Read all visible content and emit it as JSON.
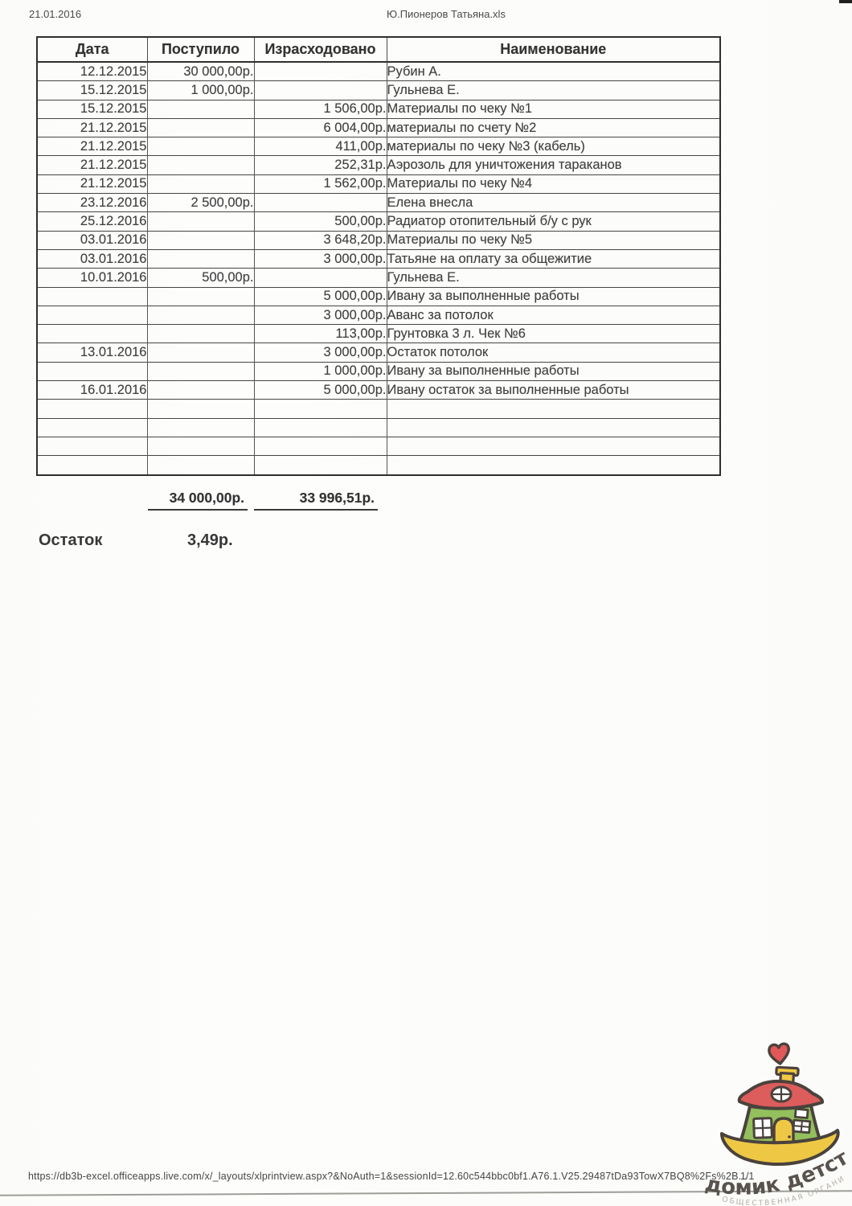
{
  "page_header": {
    "date": "21.01.2016",
    "filename": "Ю.Пионеров Татьяна.xls"
  },
  "table": {
    "columns": [
      "Дата",
      "Поступило",
      "Израсходовано",
      "Наименование"
    ],
    "rows": [
      [
        "12.12.2015",
        "30 000,00р.",
        "",
        "Рубин А."
      ],
      [
        "15.12.2015",
        "1 000,00р.",
        "",
        "Гульнева Е."
      ],
      [
        "15.12.2015",
        "",
        "1 506,00р.",
        "Материалы по чеку №1"
      ],
      [
        "21.12.2015",
        "",
        "6 004,00р.",
        "материалы по счету №2"
      ],
      [
        "21.12.2015",
        "",
        "411,00р.",
        "материалы по чеку №3 (кабель)"
      ],
      [
        "21.12.2015",
        "",
        "252,31р.",
        "Аэрозоль для уничтожения тараканов"
      ],
      [
        "21.12.2015",
        "",
        "1 562,00р.",
        "Материалы по чеку №4"
      ],
      [
        "23.12.2016",
        "2 500,00р.",
        "",
        "Елена внесла"
      ],
      [
        "25.12.2016",
        "",
        "500,00р.",
        "Радиатор отопительный б/у с рук"
      ],
      [
        "03.01.2016",
        "",
        "3 648,20р.",
        "Материалы по чеку №5"
      ],
      [
        "03.01.2016",
        "",
        "3 000,00р.",
        "Татьяне на оплату за общежитие"
      ],
      [
        "10.01.2016",
        "500,00р.",
        "",
        "Гульнева Е."
      ],
      [
        "",
        "",
        "5 000,00р.",
        "Ивану за выполненные работы"
      ],
      [
        "",
        "",
        "3 000,00р.",
        "Аванс за потолок"
      ],
      [
        "",
        "",
        "113,00р.",
        "Грунтовка 3 л. Чек №6"
      ],
      [
        "13.01.2016",
        "",
        "3 000,00р.",
        "Остаток потолок"
      ],
      [
        "",
        "",
        "1 000,00р.",
        "Ивану за выполненные работы"
      ],
      [
        "16.01.2016",
        "",
        "5 000,00р.",
        "Ивану остаток за выполненные работы"
      ],
      [
        "",
        "",
        "",
        ""
      ],
      [
        "",
        "",
        "",
        ""
      ],
      [
        "",
        "",
        "",
        ""
      ],
      [
        "",
        "",
        "",
        ""
      ]
    ],
    "totals": {
      "received": "34 000,00р.",
      "spent": "33 996,51р."
    }
  },
  "summary": {
    "label": "Остаток",
    "value": "3,49р."
  },
  "footer": {
    "url": "https://db3b-excel.officeapps.live.com/x/_layouts/xlprintview.aspx?&NoAuth=1&sessionId=12.60c544bbc0bf1.A76.1.V25.29487tDa93TowX7BQ8%2Fs%2B...",
    "page": "1/1"
  },
  "logo": {
    "title": "домик детства",
    "subtitle": "ОБЩЕСТВЕННАЯ ОРГАНИЗАЦИЯ",
    "colors": {
      "roof": "#dd5c5c",
      "body": "#93c05c",
      "door": "#eec845",
      "base": "#eec845",
      "chimney": "#f0c843",
      "heart": "#e25757",
      "window": "#ffffff",
      "title_text": "#59534d",
      "subtitle_text": "#b3aea7"
    }
  }
}
